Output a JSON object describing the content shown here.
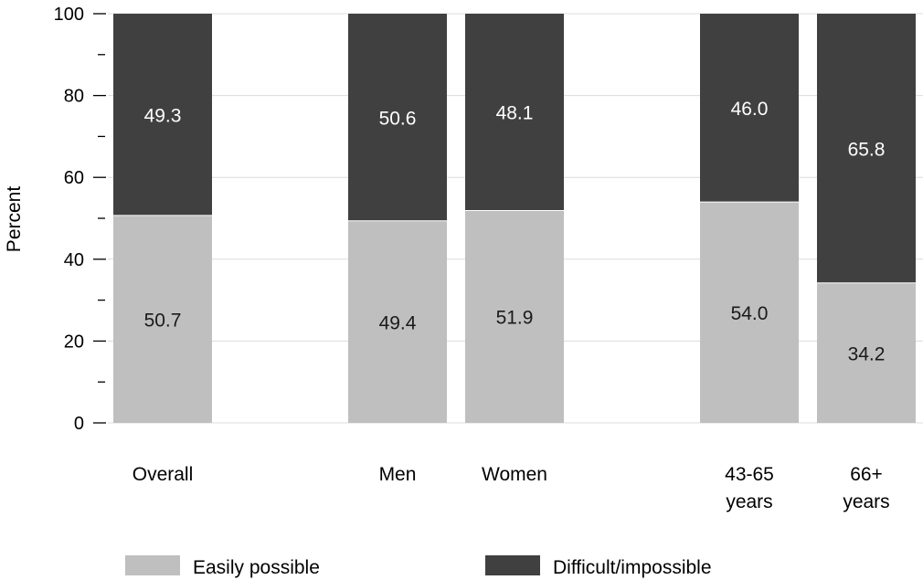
{
  "chart_data": {
    "type": "bar",
    "stacked": true,
    "ylabel": "Percent",
    "ylim": [
      0,
      100
    ],
    "yticks": [
      0,
      20,
      40,
      60,
      80,
      100
    ],
    "grid": true,
    "legend_position": "bottom",
    "categories": [
      {
        "label": [
          "Overall"
        ]
      },
      {
        "label": [
          "Men"
        ]
      },
      {
        "label": [
          "Women"
        ]
      },
      {
        "label": [
          "43-65",
          "years"
        ]
      },
      {
        "label": [
          "66+",
          "years"
        ]
      }
    ],
    "series": [
      {
        "name": "Easily possible",
        "color": "#bfbfbf",
        "label_color": "#1a1a1a",
        "values": [
          50.7,
          49.4,
          51.9,
          54.0,
          34.2
        ]
      },
      {
        "name": "Difficult/impossible",
        "color": "#404040",
        "label_color": "#ffffff",
        "values": [
          49.3,
          50.6,
          48.1,
          46.0,
          65.8
        ]
      }
    ],
    "data_labels": [
      [
        "50.7",
        "49.4",
        "51.9",
        "54.0",
        "34.2"
      ],
      [
        "49.3",
        "50.6",
        "48.1",
        "46.0",
        "65.8"
      ]
    ]
  }
}
